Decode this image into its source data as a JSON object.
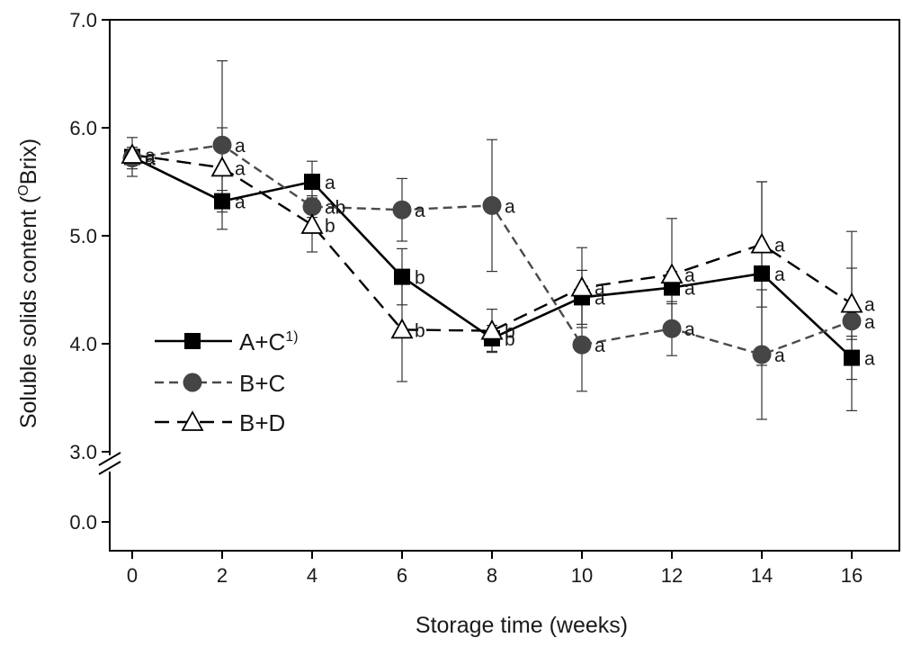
{
  "chart_data": {
    "type": "line",
    "xlabel": "Storage time (weeks)",
    "ylabel_main": "Soluble solids content (",
    "ylabel_sup": "O",
    "ylabel_tail": "Brix)",
    "x": [
      0,
      2,
      4,
      6,
      8,
      10,
      12,
      14,
      16
    ],
    "xlim": [
      -0.5,
      17
    ],
    "ylim": [
      3.0,
      7.0
    ],
    "yticks_upper": [
      3.0,
      4.0,
      5.0,
      6.0,
      7.0
    ],
    "ytick_labels_upper": [
      "3.0",
      "4.0",
      "5.0",
      "6.0",
      "7.0"
    ],
    "ytick_lower": 0.0,
    "ytick_label_lower": "0.0",
    "xtick_labels": [
      "0",
      "2",
      "4",
      "6",
      "8",
      "10",
      "12",
      "14",
      "16"
    ],
    "axis_break": true,
    "legend_position": "center-left",
    "series": [
      {
        "name": "A+C",
        "legend_label": "A+C",
        "legend_superscript": "1)",
        "marker": "filled-square",
        "line_style": "solid",
        "color": "#000000",
        "values": [
          5.73,
          5.32,
          5.5,
          4.62,
          4.05,
          4.43,
          4.52,
          4.65,
          3.87
        ],
        "error": [
          0.18,
          0.1,
          0.19,
          0.26,
          0.12,
          0.25,
          0.15,
          0.85,
          0.2
        ],
        "letters": [
          "a",
          "a",
          "a",
          "b",
          "b",
          "a",
          "a",
          "a",
          "a"
        ]
      },
      {
        "name": "B+C",
        "legend_label": "B+C",
        "marker": "filled-circle",
        "line_style": "dashed",
        "color": "#4a4a4a",
        "values": [
          5.72,
          5.84,
          5.27,
          5.24,
          5.28,
          3.99,
          4.14,
          3.9,
          4.21
        ],
        "error": [
          0.1,
          0.78,
          0.1,
          0.29,
          0.61,
          0.43,
          0.25,
          0.6,
          0.83
        ],
        "letters": [
          "a",
          "a",
          "ab",
          "a",
          "a",
          "a",
          "a",
          "a",
          "a"
        ]
      },
      {
        "name": "B+D",
        "legend_label": "B+D",
        "marker": "open-triangle",
        "line_style": "dashed",
        "color": "#000000",
        "values": [
          5.75,
          5.63,
          5.1,
          4.13,
          4.12,
          4.52,
          4.64,
          4.92,
          4.37
        ],
        "error": [
          0.07,
          0.37,
          0.25,
          0.48,
          0.2,
          0.37,
          0.52,
          0.58,
          0.33
        ],
        "letters": [
          "a",
          "a",
          "b",
          "b",
          "b",
          "a",
          "a",
          "a",
          "a"
        ]
      }
    ]
  }
}
